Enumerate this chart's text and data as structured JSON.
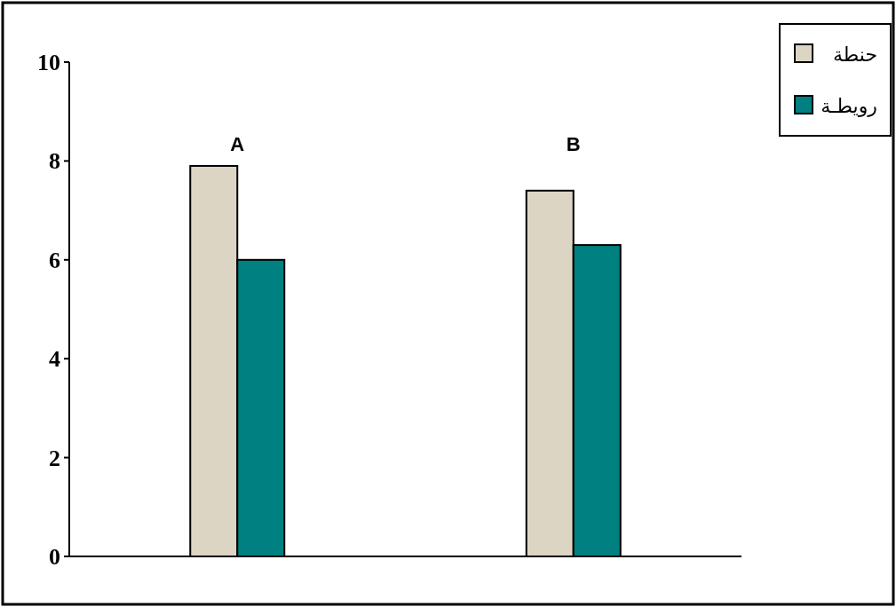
{
  "chart_data": {
    "type": "bar",
    "categories": [
      "A",
      "B"
    ],
    "series": [
      {
        "name": "حنطة",
        "color": "#ddd5c4",
        "values": [
          7.9,
          7.4
        ]
      },
      {
        "name": "رويطـة",
        "color": "#008080",
        "values": [
          6.0,
          6.3
        ]
      }
    ],
    "ylim": [
      0,
      10
    ],
    "yticks": [
      0,
      2,
      4,
      6,
      8,
      10
    ],
    "grid": false,
    "legend": "top right"
  }
}
